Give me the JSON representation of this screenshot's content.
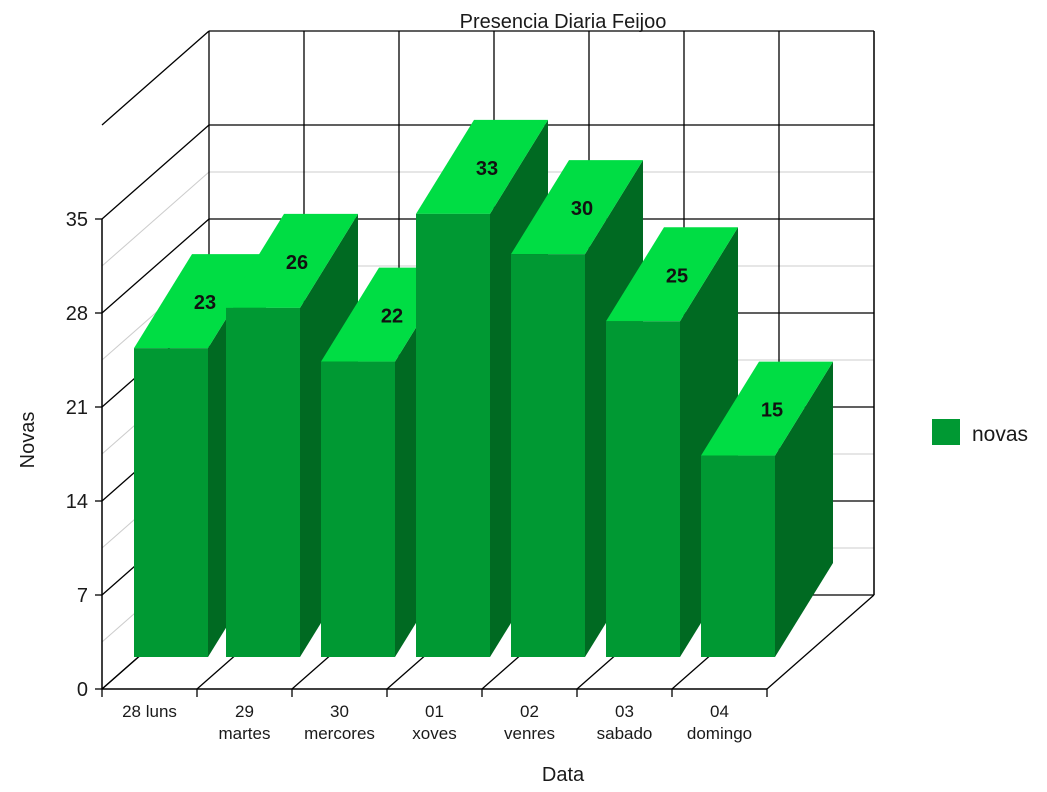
{
  "chart_data": {
    "type": "bar",
    "title": "Presencia Diaria Feijoo",
    "xlabel": "Data",
    "ylabel": "Novas",
    "ylim": [
      0,
      35
    ],
    "yticks": [
      "0",
      "7",
      "14",
      "21",
      "28",
      "35"
    ],
    "categories": [
      [
        "28 luns"
      ],
      [
        "29",
        "martes"
      ],
      [
        "30",
        "mercores"
      ],
      [
        "01",
        "xoves"
      ],
      [
        "02",
        "venres"
      ],
      [
        "03",
        "sabado"
      ],
      [
        "04",
        "domingo"
      ]
    ],
    "series": [
      {
        "name": "novas",
        "values": [
          23,
          26,
          22,
          33,
          30,
          25,
          15
        ]
      }
    ],
    "data_labels": [
      "23",
      "26",
      "22",
      "33",
      "30",
      "25",
      "15"
    ],
    "legend_position": "right",
    "grid": true,
    "three_d": true
  },
  "colors": {
    "bar_front": "#009933",
    "bar_top": "#00dd44",
    "bar_side": "#006a22",
    "legend_swatch": "#009933",
    "grid": "#000000",
    "floor_grid": "#cccccc"
  }
}
